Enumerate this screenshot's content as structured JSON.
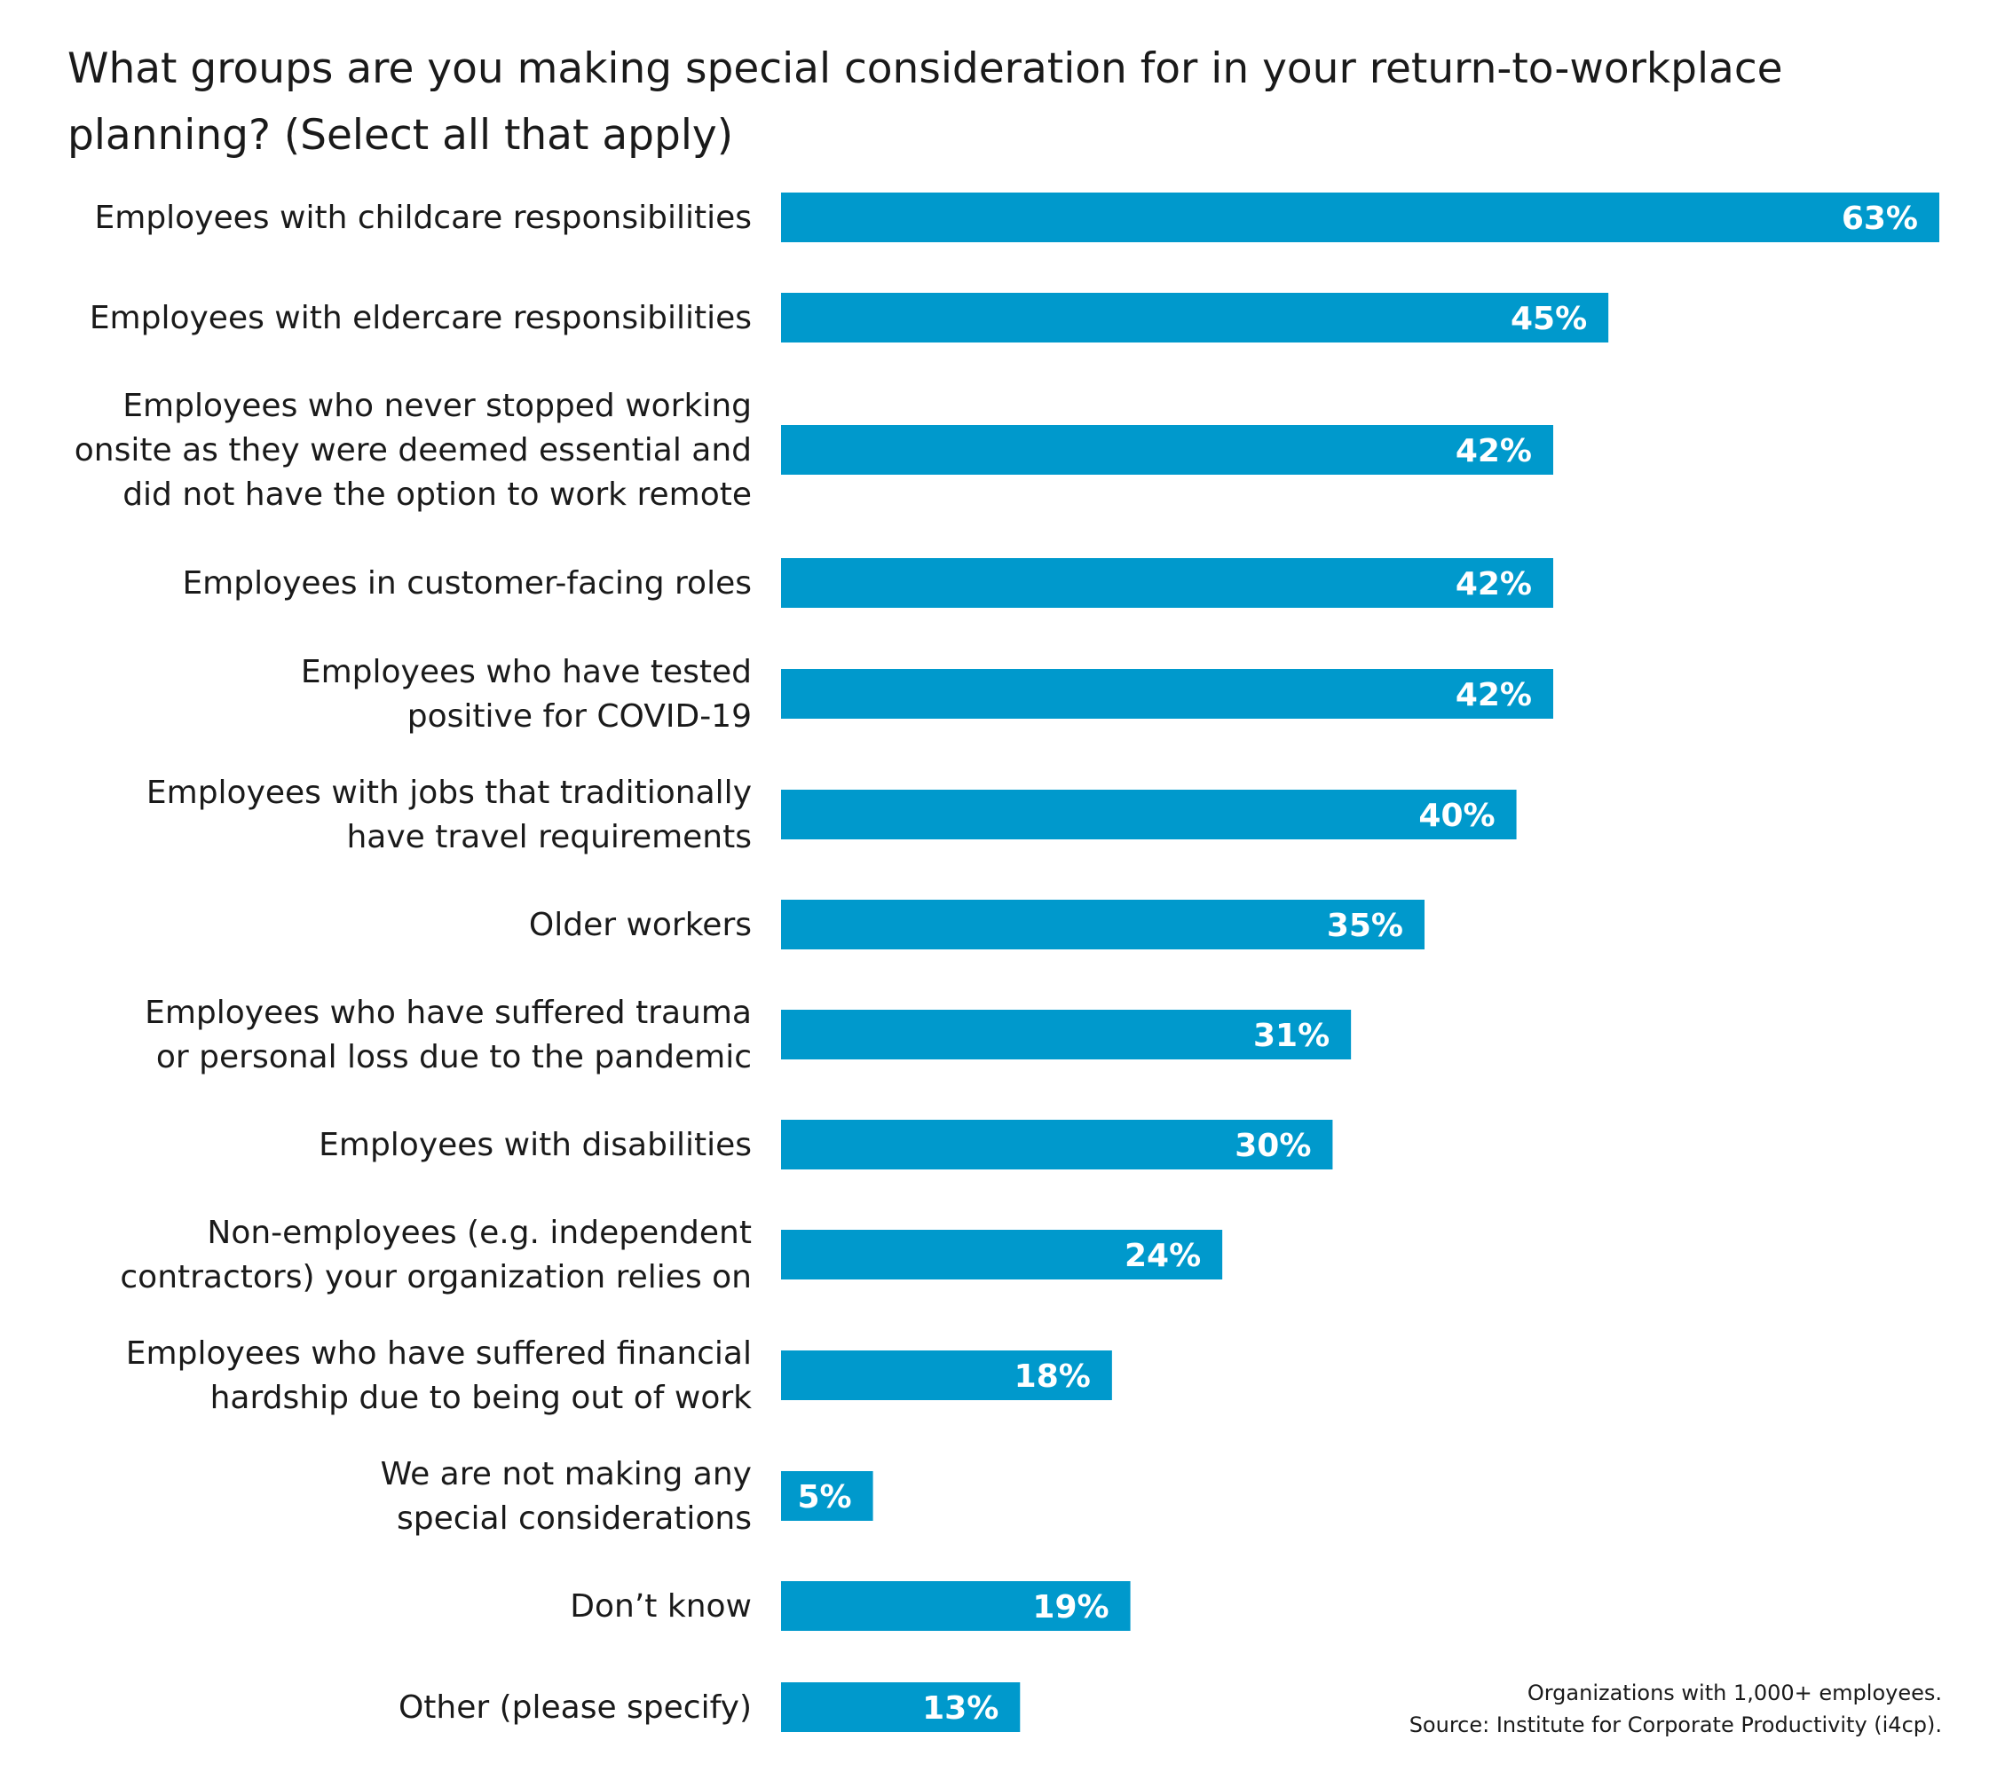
{
  "chart_data": {
    "type": "bar",
    "orientation": "horizontal",
    "title": "What groups are you making special consideration for in your return-to-workplace planning? (Select all that apply)",
    "categories": [
      [
        "Employees with childcare responsibilities"
      ],
      [
        "Employees with eldercare responsibilities"
      ],
      [
        "Employees who never stopped working",
        "onsite as they were deemed essential and",
        "did not have the option to work remote"
      ],
      [
        "Employees in customer-facing roles"
      ],
      [
        "Employees who have tested",
        "positive for COVID-19"
      ],
      [
        "Employees with jobs that traditionally",
        "have travel requirements"
      ],
      [
        "Older workers"
      ],
      [
        "Employees who have suffered trauma",
        "or personal loss due to the pandemic"
      ],
      [
        "Employees with disabilities"
      ],
      [
        "Non-employees (e.g. independent",
        "contractors) your organization relies on"
      ],
      [
        "Employees who have suffered financial",
        "hardship due to being out of work"
      ],
      [
        "We are not making any",
        "special considerations"
      ],
      [
        "Don’t know"
      ],
      [
        "Other (please specify)"
      ]
    ],
    "values": [
      63,
      45,
      42,
      42,
      42,
      40,
      35,
      31,
      30,
      24,
      18,
      5,
      19,
      13
    ],
    "value_labels": [
      "63%",
      "45%",
      "42%",
      "42%",
      "42%",
      "40%",
      "35%",
      "31%",
      "30%",
      "24%",
      "18%",
      "5%",
      "19%",
      "13%"
    ],
    "xlim": [
      0,
      63
    ],
    "bar_color": "#0099cc",
    "grid": false,
    "legend": "none"
  },
  "footnote": {
    "line1": "Organizations with 1,000+ employees.",
    "line2": "Source: Institute for Corporate Productivity (i4cp)."
  }
}
